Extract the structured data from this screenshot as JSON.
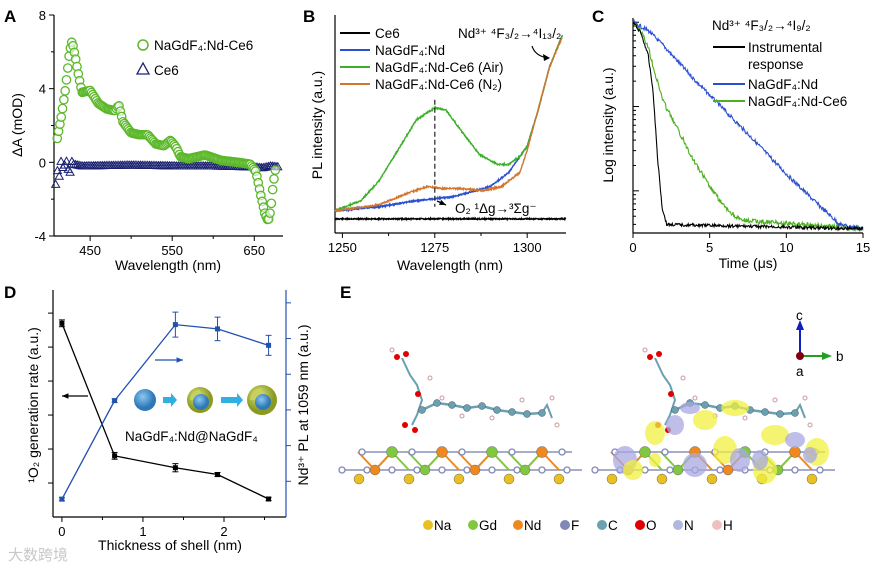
{
  "figure": {
    "panel_letters": [
      "A",
      "B",
      "C",
      "D",
      "E"
    ],
    "watermark": "大数跨境",
    "colors": {
      "green": "#5cb82a",
      "navy": "#1a2070",
      "blue": "#2a4fd0",
      "orange": "#d2752d",
      "black": "#000000",
      "darkblue": "#2050b0"
    }
  },
  "chart_data": [
    {
      "panel": "A",
      "type": "scatter",
      "xlabel": "Wavelength (nm)",
      "ylabel": "ΔA (mOD)",
      "xlim": [
        406,
        685
      ],
      "ylim": [
        -4,
        8
      ],
      "xticks": [
        450,
        550,
        650
      ],
      "yticks": [
        -4,
        0,
        4,
        8
      ],
      "legend_position": "top-right",
      "series": [
        {
          "name": "NaGdF₄:Nd-Ce6",
          "marker": "circle",
          "color": "#5cb82a",
          "x": [
            410,
            415,
            420,
            425,
            428,
            432,
            436,
            440,
            450,
            460,
            470,
            480,
            485,
            490,
            500,
            510,
            520,
            530,
            540,
            548,
            555,
            560,
            570,
            590,
            610,
            630,
            645,
            652,
            658,
            663,
            667,
            670,
            673,
            677
          ],
          "y": [
            1.3,
            2.5,
            4.0,
            6.0,
            6.6,
            5.7,
            4.7,
            3.8,
            3.9,
            3.2,
            2.9,
            2.8,
            3.1,
            2.2,
            1.6,
            1.5,
            1.5,
            1.0,
            0.9,
            1.2,
            0.8,
            0.3,
            0.2,
            0.4,
            0.1,
            0.0,
            -0.1,
            -0.5,
            -1.8,
            -2.8,
            -3.2,
            -2.6,
            -1.2,
            0.0
          ]
        },
        {
          "name": "Ce6",
          "marker": "triangle",
          "color": "#1a2070",
          "x": [
            408,
            410,
            412,
            415,
            418,
            420,
            423,
            425,
            428,
            430,
            440,
            500,
            560,
            600,
            650,
            660,
            670,
            680
          ],
          "y": [
            -1.2,
            -0.4,
            -0.9,
            0.2,
            -0.6,
            0.3,
            -0.3,
            -0.7,
            0.1,
            -0.1,
            -0.2,
            -0.15,
            -0.2,
            -0.2,
            -0.25,
            -0.3,
            -0.2,
            -0.25
          ]
        }
      ]
    },
    {
      "panel": "B",
      "type": "line",
      "xlabel": "Wavelength (nm)",
      "ylabel": "PL intensity (a.u.)",
      "xlim": [
        1248,
        1310.5
      ],
      "ylim": [
        0,
        1.08
      ],
      "xticks": [
        1250,
        1275,
        1300
      ],
      "legend_position": "top-left",
      "annotations": [
        "Nd³⁺ ⁴F₃/₂→⁴I₁₃/₂",
        "O₂ ¹Δg→³Σg⁻"
      ],
      "series": [
        {
          "name": "Ce6",
          "color": "#000000",
          "x": [
            1248,
            1260,
            1275,
            1290,
            1310.5
          ],
          "y": [
            0.07,
            0.07,
            0.07,
            0.07,
            0.07
          ]
        },
        {
          "name": "NaGdF₄:Nd",
          "color": "#2a4fd0",
          "x": [
            1248,
            1260,
            1270,
            1275,
            1280,
            1290,
            1295,
            1300,
            1303,
            1306,
            1309.5
          ],
          "y": [
            0.11,
            0.13,
            0.16,
            0.17,
            0.18,
            0.23,
            0.3,
            0.43,
            0.61,
            0.82,
            0.98
          ]
        },
        {
          "name": "NaGdF₄:Nd-Ce6 (Air)",
          "color": "#3cb02a",
          "x": [
            1248,
            1255,
            1260,
            1265,
            1270,
            1275,
            1278,
            1282,
            1287,
            1292,
            1295,
            1298,
            1300,
            1303,
            1306,
            1309.5
          ],
          "y": [
            0.11,
            0.16,
            0.26,
            0.41,
            0.56,
            0.62,
            0.61,
            0.51,
            0.39,
            0.34,
            0.34,
            0.38,
            0.43,
            0.61,
            0.82,
            0.98
          ]
        },
        {
          "name": "NaGdF₄:Nd-Ce6 (N₂)",
          "color": "#d2752d",
          "x": [
            1248,
            1260,
            1268,
            1273,
            1277,
            1282,
            1288,
            1293,
            1298,
            1300,
            1306,
            1309.5
          ],
          "y": [
            0.11,
            0.14,
            0.2,
            0.23,
            0.22,
            0.22,
            0.21,
            0.23,
            0.3,
            0.41,
            0.82,
            0.97
          ]
        }
      ]
    },
    {
      "panel": "C",
      "type": "line",
      "xlabel": "Time (μs)",
      "ylabel": "Log intensity (a.u.)",
      "yscale": "log10",
      "xlim": [
        0,
        15
      ],
      "ylim": [
        -2.5,
        0.05
      ],
      "xticks": [
        0,
        5,
        10,
        15
      ],
      "legend_title": "Nd³⁺ ⁴F₃/₂→⁴I₉/₂",
      "legend_position": "top-right",
      "series": [
        {
          "name": "Instrumental",
          "name_line2": "response",
          "color": "#000000",
          "x": [
            0,
            0.5,
            1,
            1.3,
            1.6,
            1.9,
            2.2,
            15
          ],
          "y": [
            0,
            -0.12,
            -0.4,
            -0.8,
            -1.6,
            -2.2,
            -2.4,
            -2.45
          ]
        },
        {
          "name": "NaGdF₄:Nd",
          "color": "#2a4fd0",
          "x": [
            0,
            1,
            2,
            4,
            6,
            8,
            10,
            12,
            13.5,
            15
          ],
          "y": [
            0,
            -0.1,
            -0.28,
            -0.68,
            -1.05,
            -1.42,
            -1.8,
            -2.15,
            -2.4,
            -2.45
          ]
        },
        {
          "name": "NaGdF₄:Nd-Ce6",
          "color": "#4cb020",
          "x": [
            0,
            0.5,
            1,
            1.5,
            2,
            3,
            4,
            5,
            6,
            7,
            15
          ],
          "y": [
            0,
            -0.1,
            -0.3,
            -0.65,
            -0.95,
            -1.3,
            -1.65,
            -1.95,
            -2.2,
            -2.35,
            -2.45
          ]
        }
      ]
    },
    {
      "panel": "D",
      "type": "line",
      "xlabel": "Thickness of shell (nm)",
      "ylabel_left": "¹O₂ generation rate (a.u.)",
      "ylabel_right": "Nd³⁺ PL at 1059 nm (a.u.)",
      "xlim": [
        -0.11,
        2.765
      ],
      "ylim_left": [
        0,
        6.68
      ],
      "ylim_right": [
        0,
        6.36
      ],
      "xticks": [
        0,
        1,
        2
      ],
      "inset_label": "NaGdF₄:Nd@NaGdF₄",
      "series": [
        {
          "name": "¹O₂ generation rate",
          "axis": "left",
          "color": "#000000",
          "x": [
            0,
            0.65,
            1.4,
            1.92,
            2.55
          ],
          "y": [
            5.7,
            1.8,
            1.45,
            1.25,
            0.53
          ],
          "err": [
            0.1,
            0.1,
            0.12,
            0.06,
            0.05
          ]
        },
        {
          "name": "Nd³⁺ PL at 1059 nm",
          "axis": "right",
          "color": "#2050b0",
          "x": [
            0,
            0.65,
            1.4,
            1.92,
            2.55
          ],
          "y": [
            0.5,
            3.26,
            5.39,
            5.27,
            4.81
          ],
          "err": [
            0.05,
            0.05,
            0.35,
            0.33,
            0.28
          ]
        }
      ]
    }
  ],
  "panel_e": {
    "axes_labels": [
      "c",
      "b",
      "a"
    ],
    "legend": [
      {
        "label": "Na",
        "color": "#e8c020"
      },
      {
        "label": "Gd",
        "color": "#80c840"
      },
      {
        "label": "Nd",
        "color": "#f08820"
      },
      {
        "label": "F",
        "color": "#8088b8"
      },
      {
        "label": "C",
        "color": "#6aa0b0"
      },
      {
        "label": "O",
        "color": "#e00000"
      },
      {
        "label": "N",
        "color": "#b0b8e0"
      },
      {
        "label": "H",
        "color": "#f0c0c0"
      }
    ]
  }
}
